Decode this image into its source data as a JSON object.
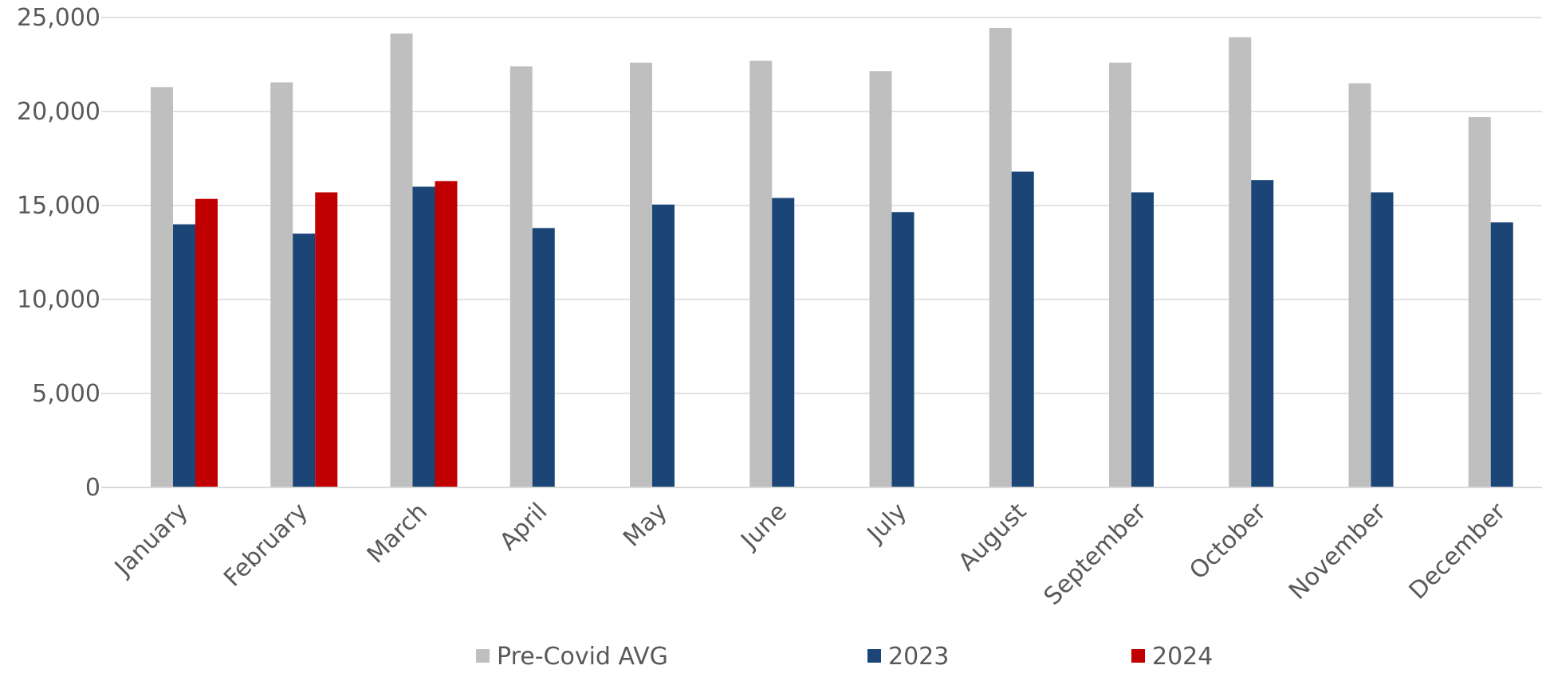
{
  "chart_data": {
    "type": "bar",
    "title": "",
    "xlabel": "",
    "ylabel": "",
    "ylim": [
      0,
      25000
    ],
    "yticks": [
      0,
      5000,
      10000,
      15000,
      20000,
      25000
    ],
    "ytick_labels": [
      "0",
      "5,000",
      "10,000",
      "15,000",
      "20,000",
      "25,000"
    ],
    "grid": true,
    "legend_position": "bottom",
    "categories": [
      "January",
      "February",
      "March",
      "April",
      "May",
      "June",
      "July",
      "August",
      "September",
      "October",
      "November",
      "December"
    ],
    "series": [
      {
        "name": "Pre-Covid AVG",
        "color": "#bfbfbf",
        "values": [
          21300,
          21550,
          24150,
          22400,
          22600,
          22700,
          22150,
          24450,
          22600,
          23950,
          21500,
          19700
        ]
      },
      {
        "name": "2023",
        "color": "#1a4576",
        "values": [
          14000,
          13500,
          16000,
          13800,
          15050,
          15400,
          14650,
          16800,
          15700,
          16350,
          15700,
          14100
        ]
      },
      {
        "name": "2024",
        "color": "#c00000",
        "values": [
          15350,
          15700,
          16300,
          null,
          null,
          null,
          null,
          null,
          null,
          null,
          null,
          null
        ]
      }
    ]
  }
}
